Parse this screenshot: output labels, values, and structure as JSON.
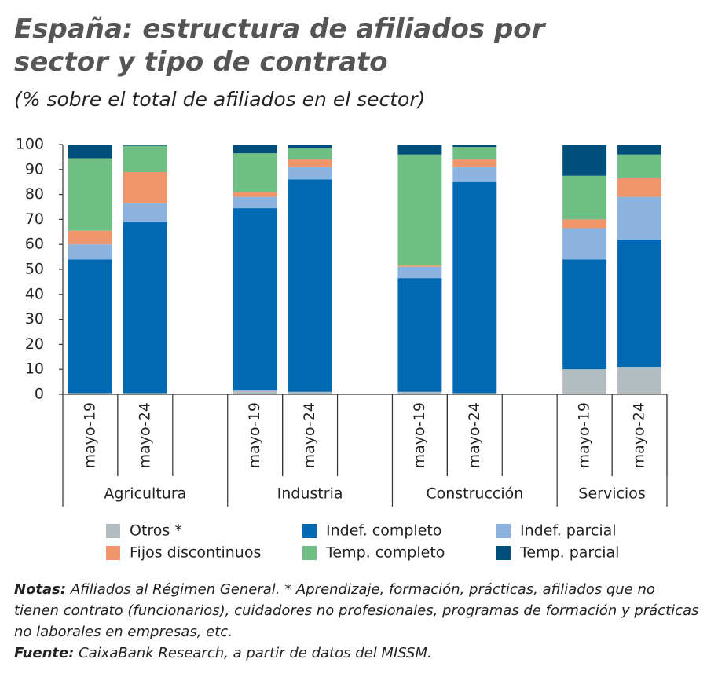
{
  "chart_data": {
    "type": "stacked_bar",
    "title": "España: estructura de afiliados por sector y tipo de contrato",
    "subtitle": "(% sobre el total de afiliados en el sector)",
    "groups": [
      {
        "label": "Agricultura",
        "categories": [
          "mayo-19",
          "mayo-24"
        ]
      },
      {
        "label": "Industria",
        "categories": [
          "mayo-19",
          "mayo-24"
        ]
      },
      {
        "label": "Construcción",
        "categories": [
          "mayo-19",
          "mayo-24"
        ]
      },
      {
        "label": "Servicios",
        "categories": [
          "mayo-19",
          "mayo-24"
        ]
      }
    ],
    "series": [
      {
        "name": "Otros *",
        "color": "#b3bcc1",
        "values": [
          0.5,
          0.5,
          1.5,
          1,
          1,
          0.5,
          10,
          11
        ]
      },
      {
        "name": "Indef. completo",
        "color": "#0069b4",
        "values": [
          53.5,
          68.5,
          73,
          85,
          45.5,
          84.5,
          44,
          51
        ]
      },
      {
        "name": "Indef. parcial",
        "color": "#8cb2e0",
        "values": [
          6,
          7.5,
          4.5,
          5,
          4.5,
          6,
          12.5,
          17
        ]
      },
      {
        "name": "Fijos discontinuos",
        "color": "#f0956a",
        "values": [
          5.5,
          12.5,
          2,
          3,
          0.5,
          3,
          3.5,
          7.5
        ]
      },
      {
        "name": "Temp. completo",
        "color": "#6fbf85",
        "values": [
          29,
          10.5,
          15.5,
          4.5,
          44.5,
          5,
          17.5,
          9.5
        ]
      },
      {
        "name": "Temp. parcial",
        "color": "#004f7a",
        "values": [
          5.5,
          0.5,
          3.5,
          1.5,
          4,
          1,
          12.5,
          4
        ]
      }
    ],
    "ylim": [
      0,
      100
    ],
    "yticks": [
      0,
      10,
      20,
      30,
      40,
      50,
      60,
      70,
      80,
      90,
      100
    ],
    "grid": false,
    "legend": "bottom"
  },
  "notes": {
    "label": "Notas:",
    "text": " Afiliados al Régimen General. * Aprendizaje, formación, prácticas, afiliados que no tienen contrato (funcionarios), cuidadores no profesionales, programas de formación y prácticas no laborales en empresas, etc."
  },
  "source": {
    "label": "Fuente:",
    "text": " CaixaBank Research, a partir de datos del MISSM."
  }
}
